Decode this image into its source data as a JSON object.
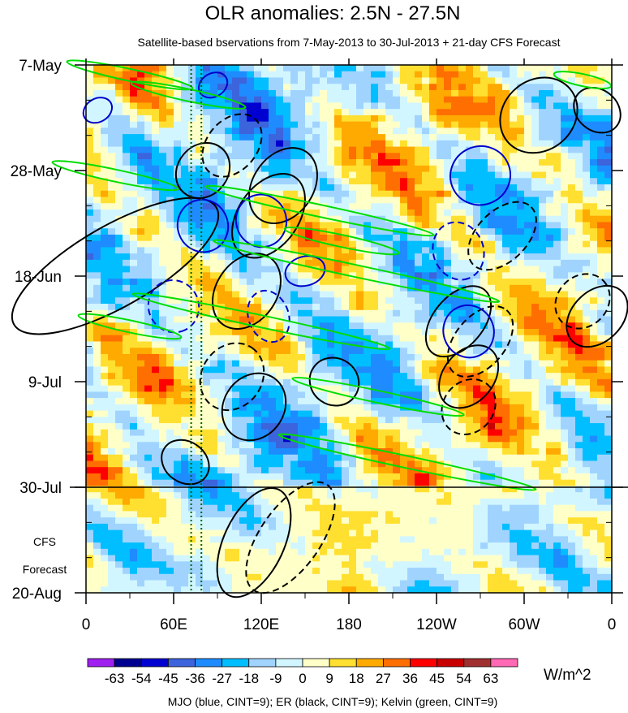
{
  "chart_data": {
    "type": "heatmap",
    "title": "OLR anomalies: 2.5N - 27.5N",
    "subtitle": "Satellite-based bservations from 7-May-2013 to 30-Jul-2013 + 21-day CFS Forecast",
    "x_ticks": [
      {
        "label": "0",
        "lon": 0
      },
      {
        "label": "60E",
        "lon": 60
      },
      {
        "label": "120E",
        "lon": 120
      },
      {
        "label": "180",
        "lon": 180
      },
      {
        "label": "120W",
        "lon": 240
      },
      {
        "label": "60W",
        "lon": 300
      },
      {
        "label": "0",
        "lon": 360
      }
    ],
    "xlim": [
      0,
      360
    ],
    "y_ticks": [
      {
        "label": "7-May",
        "day": 0
      },
      {
        "label": "28-May",
        "day": 21
      },
      {
        "label": "18-Jun",
        "day": 42
      },
      {
        "label": "9-Jul",
        "day": 63
      },
      {
        "label": "30-Jul",
        "day": 84
      },
      {
        "label": "20-Aug",
        "day": 105
      }
    ],
    "ylim": [
      0,
      105
    ],
    "forecast_start_day": 84,
    "forecast_label": [
      "CFS",
      "Forecast"
    ],
    "reference_lons": [
      72,
      79
    ],
    "levels": [
      -63,
      -54,
      -45,
      -36,
      -27,
      -18,
      -9,
      0,
      9,
      18,
      27,
      36,
      45,
      54,
      63
    ],
    "level_labels": [
      "-63",
      "-54",
      "-45",
      "-36",
      "-27",
      "-18",
      "-9",
      "0",
      "9",
      "18",
      "27",
      "36",
      "45",
      "54",
      "63"
    ],
    "colors": [
      "#a020f0",
      "#000090",
      "#0000d0",
      "#3c64dc",
      "#1e8cff",
      "#00beff",
      "#a0d4ff",
      "#d2f6ff",
      "#ffffc8",
      "#ffe030",
      "#ffaa00",
      "#ff6e00",
      "#ff0000",
      "#c80000",
      "#a03030",
      "#ff69b4"
    ],
    "units": "W/m^2",
    "legend": "MJO (blue, CINT=9); ER (black, CINT=9); Kelvin (green, CINT=9)",
    "contour_colors": {
      "MJO": "#0000cc",
      "ER": "#000000",
      "Kelvin": "#00dd00"
    },
    "contours": [
      {
        "type": "ER",
        "lon": 310,
        "day": 10,
        "rx": 14,
        "ry": 3.5,
        "angle": -40,
        "dash": false
      },
      {
        "type": "ER",
        "lon": 350,
        "day": 9,
        "rx": 7,
        "ry": 2.5,
        "angle": -50,
        "dash": false
      },
      {
        "type": "ER",
        "lon": 135,
        "day": 24,
        "rx": 14,
        "ry": 3,
        "angle": -55,
        "dash": false
      },
      {
        "type": "ER",
        "lon": 125,
        "day": 30,
        "rx": 16,
        "ry": 3,
        "angle": -55,
        "dash": false
      },
      {
        "type": "ER",
        "lon": 110,
        "day": 45,
        "rx": 14,
        "ry": 3,
        "angle": -55,
        "dash": false
      },
      {
        "type": "ER",
        "lon": 100,
        "day": 16,
        "rx": 12,
        "ry": 2.5,
        "angle": -50,
        "dash": true
      },
      {
        "type": "ER",
        "lon": 80,
        "day": 21,
        "rx": 10,
        "ry": 2.5,
        "angle": -50,
        "dash": false
      },
      {
        "type": "ER",
        "lon": 285,
        "day": 34,
        "rx": 14,
        "ry": 2.5,
        "angle": -45,
        "dash": true
      },
      {
        "type": "ER",
        "lon": 255,
        "day": 51,
        "rx": 14,
        "ry": 2.5,
        "angle": -50,
        "dash": false
      },
      {
        "type": "ER",
        "lon": 270,
        "day": 55,
        "rx": 14,
        "ry": 2.5,
        "angle": -50,
        "dash": true
      },
      {
        "type": "ER",
        "lon": 262,
        "day": 62,
        "rx": 12,
        "ry": 2.5,
        "angle": -50,
        "dash": false
      },
      {
        "type": "ER",
        "lon": 262,
        "day": 68,
        "rx": 10,
        "ry": 2.5,
        "angle": -50,
        "dash": true
      },
      {
        "type": "ER",
        "lon": 115,
        "day": 68,
        "rx": 12,
        "ry": 3,
        "angle": -55,
        "dash": false
      },
      {
        "type": "ER",
        "lon": 100,
        "day": 62,
        "rx": 12,
        "ry": 3,
        "angle": -55,
        "dash": true
      },
      {
        "type": "ER",
        "lon": 170,
        "day": 63,
        "rx": 8,
        "ry": 2.5,
        "angle": -55,
        "dash": false
      },
      {
        "type": "ER",
        "lon": 68,
        "day": 79,
        "rx": 7,
        "ry": 2.5,
        "angle": -55,
        "dash": false
      },
      {
        "type": "ER",
        "lon": 115,
        "day": 95,
        "rx": 20,
        "ry": 3,
        "angle": -65,
        "dash": false
      },
      {
        "type": "ER",
        "lon": 140,
        "day": 94,
        "rx": 22,
        "ry": 3,
        "angle": -55,
        "dash": true
      },
      {
        "type": "ER",
        "lon": 20,
        "day": 40,
        "rx": 40,
        "ry": 4,
        "angle": -30,
        "dash": false
      },
      {
        "type": "ER",
        "lon": 350,
        "day": 50,
        "rx": 12,
        "ry": 2.5,
        "angle": -45,
        "dash": false
      },
      {
        "type": "ER",
        "lon": 340,
        "day": 47,
        "rx": 10,
        "ry": 2.5,
        "angle": -45,
        "dash": true
      },
      {
        "type": "MJO",
        "lon": 270,
        "day": 22,
        "rx": 10,
        "ry": 3,
        "angle": 65,
        "dash": false
      },
      {
        "type": "MJO",
        "lon": 255,
        "day": 37,
        "rx": 10,
        "ry": 2.5,
        "angle": 70,
        "dash": true
      },
      {
        "type": "MJO",
        "lon": 262,
        "day": 53,
        "rx": 9,
        "ry": 2.5,
        "angle": 65,
        "dash": false
      },
      {
        "type": "MJO",
        "lon": 120,
        "day": 31,
        "rx": 9,
        "ry": 2.5,
        "angle": 75,
        "dash": false
      },
      {
        "type": "MJO",
        "lon": 150,
        "day": 41,
        "rx": 5,
        "ry": 2,
        "angle": 75,
        "dash": false
      },
      {
        "type": "MJO",
        "lon": 60,
        "day": 48,
        "rx": 9,
        "ry": 2.5,
        "angle": 65,
        "dash": true
      },
      {
        "type": "MJO",
        "lon": 80,
        "day": 32,
        "rx": 9,
        "ry": 2.5,
        "angle": 70,
        "dash": false
      },
      {
        "type": "MJO",
        "lon": 125,
        "day": 50,
        "rx": 9,
        "ry": 2,
        "angle": 70,
        "dash": true
      },
      {
        "type": "MJO",
        "lon": 8,
        "day": 9,
        "rx": 4,
        "ry": 1.5,
        "angle": 60,
        "dash": false
      },
      {
        "type": "MJO",
        "lon": 87,
        "day": 4,
        "rx": 4,
        "ry": 1.5,
        "angle": 60,
        "dash": false
      },
      {
        "type": "Kelvin",
        "lon": 30,
        "day": 2,
        "rx": 22,
        "ry": 0.6,
        "angle": 12,
        "dash": false
      },
      {
        "type": "Kelvin",
        "lon": 20,
        "day": 22,
        "rx": 22,
        "ry": 0.6,
        "angle": 12,
        "dash": false
      },
      {
        "type": "Kelvin",
        "lon": 160,
        "day": 29,
        "rx": 40,
        "ry": 0.6,
        "angle": 12,
        "dash": false
      },
      {
        "type": "Kelvin",
        "lon": 185,
        "day": 41,
        "rx": 50,
        "ry": 0.6,
        "angle": 12,
        "dash": false
      },
      {
        "type": "Kelvin",
        "lon": 120,
        "day": 51,
        "rx": 45,
        "ry": 0.6,
        "angle": 12,
        "dash": false
      },
      {
        "type": "Kelvin",
        "lon": 175,
        "day": 35,
        "rx": 20,
        "ry": 0.6,
        "angle": 12,
        "dash": false
      },
      {
        "type": "Kelvin",
        "lon": 220,
        "day": 79,
        "rx": 45,
        "ry": 0.6,
        "angle": 12,
        "dash": false
      },
      {
        "type": "Kelvin",
        "lon": 200,
        "day": 66,
        "rx": 30,
        "ry": 0.6,
        "angle": 12,
        "dash": false
      },
      {
        "type": "Kelvin",
        "lon": 30,
        "day": 52,
        "rx": 18,
        "ry": 0.6,
        "angle": 12,
        "dash": false
      },
      {
        "type": "Kelvin",
        "lon": 340,
        "day": 3,
        "rx": 10,
        "ry": 0.6,
        "angle": 12,
        "dash": false
      },
      {
        "type": "Kelvin",
        "lon": 70,
        "day": 6,
        "rx": 20,
        "ry": 0.6,
        "angle": 12,
        "dash": false
      }
    ]
  }
}
